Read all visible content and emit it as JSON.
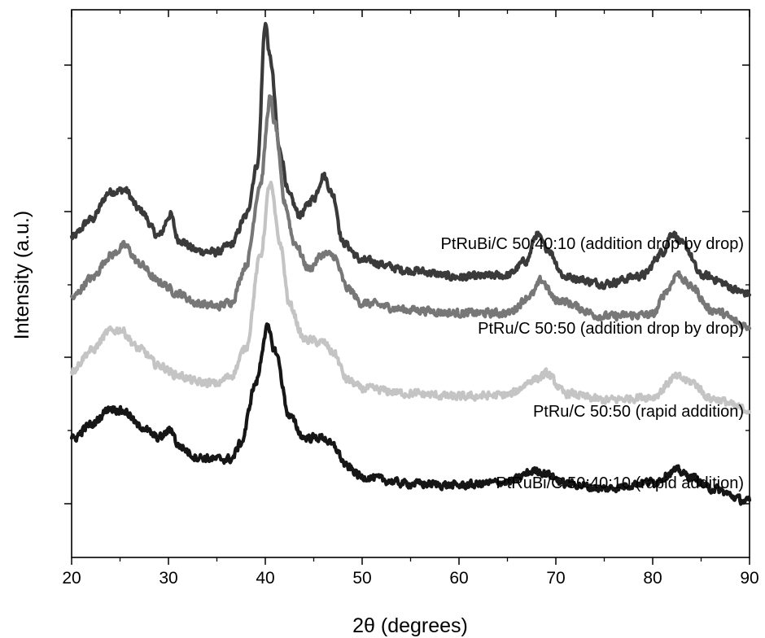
{
  "chart_data": {
    "type": "line",
    "xlabel": "2θ (degrees)",
    "ylabel": "Intensity (a.u.)",
    "xlim": [
      20,
      90
    ],
    "x_ticks": [
      20,
      30,
      40,
      50,
      60,
      70,
      80,
      90
    ],
    "y_ticks_labeled": false,
    "grid": false,
    "legend": "labels placed beside each curve, right side",
    "series": [
      {
        "name": "PtRuBi/C 50:40:10 (addition drop by drop)",
        "color": "#3a3a3a",
        "points": [
          [
            20,
            0.255
          ],
          [
            22,
            0.31
          ],
          [
            24,
            0.395
          ],
          [
            25.5,
            0.4
          ],
          [
            27,
            0.34
          ],
          [
            29,
            0.26
          ],
          [
            30.2,
            0.325
          ],
          [
            31,
            0.25
          ],
          [
            33,
            0.215
          ],
          [
            35,
            0.21
          ],
          [
            36.5,
            0.235
          ],
          [
            38,
            0.32
          ],
          [
            39.2,
            0.48
          ],
          [
            40,
            0.91
          ],
          [
            40.5,
            0.8
          ],
          [
            41.5,
            0.52
          ],
          [
            42.5,
            0.38
          ],
          [
            43.5,
            0.325
          ],
          [
            45,
            0.375
          ],
          [
            46,
            0.445
          ],
          [
            47,
            0.385
          ],
          [
            48,
            0.24
          ],
          [
            50,
            0.185
          ],
          [
            55,
            0.155
          ],
          [
            60,
            0.135
          ],
          [
            65,
            0.14
          ],
          [
            67,
            0.185
          ],
          [
            68,
            0.265
          ],
          [
            69,
            0.225
          ],
          [
            71,
            0.135
          ],
          [
            75,
            0.115
          ],
          [
            79,
            0.14
          ],
          [
            81,
            0.21
          ],
          [
            82,
            0.27
          ],
          [
            83.3,
            0.23
          ],
          [
            85,
            0.14
          ],
          [
            90,
            0.085
          ]
        ]
      },
      {
        "name": "PtRu/C 50:50 (addition drop by drop)",
        "color": "#777777",
        "points": [
          [
            20,
            0.07
          ],
          [
            22,
            0.13
          ],
          [
            24,
            0.2
          ],
          [
            25.5,
            0.23
          ],
          [
            27,
            0.175
          ],
          [
            29,
            0.12
          ],
          [
            31,
            0.085
          ],
          [
            33,
            0.055
          ],
          [
            35,
            0.045
          ],
          [
            36.5,
            0.06
          ],
          [
            38,
            0.17
          ],
          [
            39.5,
            0.42
          ],
          [
            40.5,
            0.68
          ],
          [
            41,
            0.6
          ],
          [
            42,
            0.36
          ],
          [
            43,
            0.24
          ],
          [
            44.5,
            0.16
          ],
          [
            46,
            0.205
          ],
          [
            47,
            0.2
          ],
          [
            48.5,
            0.1
          ],
          [
            50,
            0.055
          ],
          [
            55,
            0.035
          ],
          [
            60,
            0.025
          ],
          [
            65,
            0.025
          ],
          [
            67.5,
            0.08
          ],
          [
            68.5,
            0.125
          ],
          [
            70,
            0.065
          ],
          [
            75,
            0.015
          ],
          [
            80,
            0.02
          ],
          [
            81.5,
            0.095
          ],
          [
            82.5,
            0.145
          ],
          [
            84,
            0.105
          ],
          [
            86,
            0.035
          ],
          [
            90,
            -0.015
          ]
        ]
      },
      {
        "name": "PtRu/C 50:50 (rapid addition)",
        "color": "#c4c4c4",
        "points": [
          [
            20,
            -0.15
          ],
          [
            22,
            -0.09
          ],
          [
            24,
            -0.03
          ],
          [
            25,
            -0.025
          ],
          [
            27,
            -0.085
          ],
          [
            29,
            -0.135
          ],
          [
            31,
            -0.165
          ],
          [
            33,
            -0.185
          ],
          [
            35,
            -0.19
          ],
          [
            36.5,
            -0.165
          ],
          [
            38,
            -0.08
          ],
          [
            39.5,
            0.2
          ],
          [
            40.5,
            0.42
          ],
          [
            41.5,
            0.24
          ],
          [
            42.5,
            0.05
          ],
          [
            44,
            -0.055
          ],
          [
            46,
            -0.065
          ],
          [
            47,
            -0.095
          ],
          [
            48.5,
            -0.18
          ],
          [
            50,
            -0.205
          ],
          [
            55,
            -0.22
          ],
          [
            60,
            -0.23
          ],
          [
            65,
            -0.225
          ],
          [
            68,
            -0.175
          ],
          [
            69,
            -0.16
          ],
          [
            71,
            -0.22
          ],
          [
            75,
            -0.24
          ],
          [
            80,
            -0.23
          ],
          [
            82.5,
            -0.17
          ],
          [
            84,
            -0.185
          ],
          [
            86,
            -0.235
          ],
          [
            90,
            -0.27
          ]
        ]
      },
      {
        "name": "PtRuBi/C 50:40:10 (rapid addition)",
        "color": "#161616",
        "points": [
          [
            20,
            -0.36
          ],
          [
            22,
            -0.315
          ],
          [
            24,
            -0.265
          ],
          [
            25.5,
            -0.275
          ],
          [
            27,
            -0.32
          ],
          [
            29,
            -0.355
          ],
          [
            30.3,
            -0.33
          ],
          [
            31,
            -0.38
          ],
          [
            33,
            -0.415
          ],
          [
            35,
            -0.42
          ],
          [
            36.5,
            -0.42
          ],
          [
            37.5,
            -0.37
          ],
          [
            39,
            -0.19
          ],
          [
            40.2,
            -0.02
          ],
          [
            41,
            -0.09
          ],
          [
            42.5,
            -0.29
          ],
          [
            44,
            -0.355
          ],
          [
            46,
            -0.355
          ],
          [
            47,
            -0.38
          ],
          [
            48.5,
            -0.445
          ],
          [
            50,
            -0.475
          ],
          [
            55,
            -0.495
          ],
          [
            60,
            -0.5
          ],
          [
            65,
            -0.49
          ],
          [
            68,
            -0.455
          ],
          [
            69,
            -0.465
          ],
          [
            71,
            -0.495
          ],
          [
            75,
            -0.51
          ],
          [
            80,
            -0.49
          ],
          [
            82.5,
            -0.455
          ],
          [
            84,
            -0.475
          ],
          [
            86,
            -0.51
          ],
          [
            90,
            -0.55
          ]
        ]
      }
    ]
  }
}
